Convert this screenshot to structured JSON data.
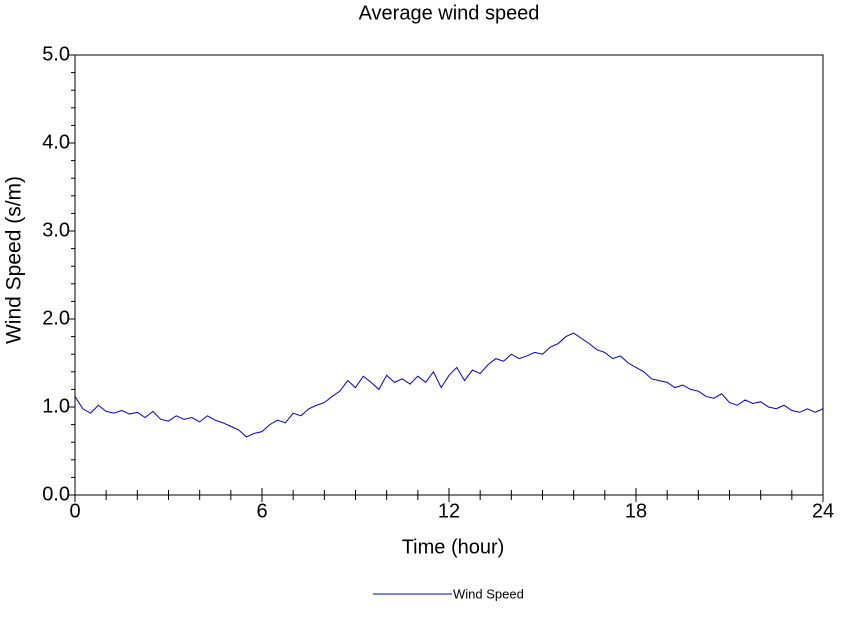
{
  "chart_data": {
    "type": "line",
    "title": "Average wind speed",
    "xlabel": "Time (hour)",
    "ylabel": "Wind Speed (s/m)",
    "x": [
      0,
      0.25,
      0.5,
      0.75,
      1,
      1.25,
      1.5,
      1.75,
      2,
      2.25,
      2.5,
      2.75,
      3,
      3.25,
      3.5,
      3.75,
      4,
      4.25,
      4.5,
      4.75,
      5,
      5.25,
      5.5,
      5.75,
      6,
      6.25,
      6.5,
      6.75,
      7,
      7.25,
      7.5,
      7.75,
      8,
      8.25,
      8.5,
      8.75,
      9,
      9.25,
      9.5,
      9.75,
      10,
      10.25,
      10.5,
      10.75,
      11,
      11.25,
      11.5,
      11.75,
      12,
      12.25,
      12.5,
      12.75,
      13,
      13.25,
      13.5,
      13.75,
      14,
      14.25,
      14.5,
      14.75,
      15,
      15.25,
      15.5,
      15.75,
      16,
      16.25,
      16.5,
      16.75,
      17,
      17.25,
      17.5,
      17.75,
      18,
      18.25,
      18.5,
      18.75,
      19,
      19.25,
      19.5,
      19.75,
      20,
      20.25,
      20.5,
      20.75,
      21,
      21.25,
      21.5,
      21.75,
      22,
      22.25,
      22.5,
      22.75,
      23,
      23.25,
      23.5,
      23.75,
      24
    ],
    "series": [
      {
        "name": "Wind Speed",
        "color": "#0000cc",
        "values": [
          1.12,
          0.98,
          0.93,
          1.02,
          0.95,
          0.93,
          0.96,
          0.92,
          0.94,
          0.88,
          0.95,
          0.86,
          0.84,
          0.9,
          0.86,
          0.88,
          0.83,
          0.9,
          0.85,
          0.82,
          0.78,
          0.74,
          0.66,
          0.7,
          0.72,
          0.8,
          0.85,
          0.82,
          0.93,
          0.9,
          0.98,
          1.02,
          1.05,
          1.12,
          1.18,
          1.3,
          1.22,
          1.35,
          1.28,
          1.2,
          1.36,
          1.28,
          1.32,
          1.26,
          1.35,
          1.28,
          1.4,
          1.22,
          1.36,
          1.45,
          1.3,
          1.42,
          1.38,
          1.48,
          1.55,
          1.52,
          1.6,
          1.55,
          1.58,
          1.62,
          1.6,
          1.68,
          1.72,
          1.8,
          1.84,
          1.78,
          1.72,
          1.65,
          1.62,
          1.55,
          1.58,
          1.5,
          1.45,
          1.4,
          1.32,
          1.3,
          1.28,
          1.22,
          1.25,
          1.2,
          1.18,
          1.12,
          1.1,
          1.15,
          1.05,
          1.02,
          1.08,
          1.04,
          1.06,
          1.0,
          0.98,
          1.02,
          0.96,
          0.94,
          0.98,
          0.94,
          0.98
        ]
      }
    ],
    "xlim": [
      0,
      24
    ],
    "xticks": [
      0,
      6,
      12,
      18,
      24
    ],
    "xminorticks": [
      1,
      2,
      3,
      4,
      5,
      7,
      8,
      9,
      10,
      11,
      13,
      14,
      15,
      16,
      17,
      19,
      20,
      21,
      22,
      23
    ],
    "ylim": [
      0,
      5
    ],
    "yticks": [
      {
        "value": 0,
        "label": "0.0"
      },
      {
        "value": 1,
        "label": "1.0"
      },
      {
        "value": 2,
        "label": "2.0"
      },
      {
        "value": 3,
        "label": "3.0"
      },
      {
        "value": 4,
        "label": "4.0"
      },
      {
        "value": 5,
        "label": "5.0"
      }
    ],
    "yminorticks": [
      0.2,
      0.4,
      0.6,
      0.8,
      1.2,
      1.4,
      1.6,
      1.8,
      2.2,
      2.4,
      2.6,
      2.8,
      3.2,
      3.4,
      3.6,
      3.8,
      4.2,
      4.4,
      4.6,
      4.8
    ],
    "grid": false,
    "legend": "bottom"
  }
}
